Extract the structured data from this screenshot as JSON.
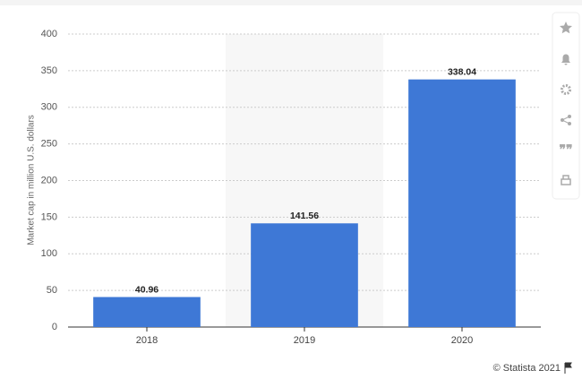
{
  "chart_data": {
    "type": "bar",
    "y_label": "Market cap in million U.S. dollars",
    "categories": [
      "2018",
      "2019",
      "2020"
    ],
    "values": [
      40.96,
      141.56,
      338.04
    ],
    "color": "#3e78d6",
    "ylim": [
      0,
      400
    ],
    "yticks": [
      0,
      50,
      100,
      150,
      200,
      250,
      300,
      350,
      400
    ],
    "grid": true,
    "credit": "© Statista 2021"
  }
}
